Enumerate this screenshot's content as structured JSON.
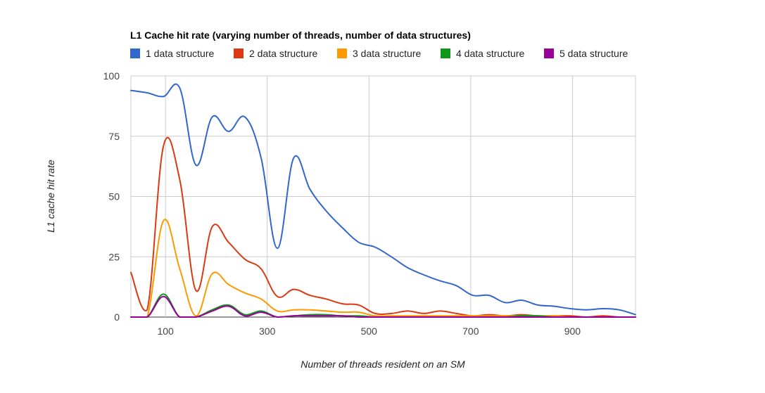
{
  "chart_data": {
    "type": "line",
    "title": "L1 Cache hit rate (varying number of threads, number of data structures)",
    "xlabel": "Number of threads resident on an SM",
    "ylabel": "L1 cache hit rate",
    "xlim": [
      32,
      1024
    ],
    "ylim": [
      0,
      100
    ],
    "x_ticks": [
      100,
      300,
      500,
      700,
      900
    ],
    "y_ticks": [
      0,
      25,
      50,
      75,
      100
    ],
    "x_tick_labels": [
      "100",
      "300",
      "500",
      "700",
      "900"
    ],
    "y_tick_labels": [
      "0",
      "25",
      "50",
      "75",
      "100"
    ],
    "grid": true,
    "legend_position": "top",
    "series": [
      {
        "name": "1 data structure",
        "color": "#3366cc",
        "points": [
          [
            32,
            94
          ],
          [
            64,
            93
          ],
          [
            96,
            91.5
          ],
          [
            128,
            95
          ],
          [
            160,
            63
          ],
          [
            192,
            83
          ],
          [
            224,
            77
          ],
          [
            256,
            83
          ],
          [
            288,
            66
          ],
          [
            320,
            28.5
          ],
          [
            352,
            66
          ],
          [
            384,
            53
          ],
          [
            416,
            44
          ],
          [
            448,
            37
          ],
          [
            480,
            31
          ],
          [
            512,
            29
          ],
          [
            544,
            25
          ],
          [
            576,
            20.5
          ],
          [
            608,
            17.5
          ],
          [
            640,
            15
          ],
          [
            672,
            13
          ],
          [
            704,
            9
          ],
          [
            736,
            9
          ],
          [
            768,
            6
          ],
          [
            800,
            7
          ],
          [
            832,
            5
          ],
          [
            864,
            4.5
          ],
          [
            896,
            3.5
          ],
          [
            928,
            3
          ],
          [
            960,
            3.5
          ],
          [
            992,
            3
          ],
          [
            1024,
            1
          ]
        ]
      },
      {
        "name": "2 data structure",
        "color": "#dc3912",
        "points": [
          [
            32,
            18.5
          ],
          [
            64,
            3
          ],
          [
            96,
            71
          ],
          [
            128,
            57
          ],
          [
            160,
            11
          ],
          [
            192,
            37.5
          ],
          [
            224,
            31
          ],
          [
            256,
            24
          ],
          [
            288,
            20
          ],
          [
            320,
            8.5
          ],
          [
            352,
            11.5
          ],
          [
            384,
            9
          ],
          [
            416,
            7.5
          ],
          [
            448,
            5.5
          ],
          [
            480,
            5
          ],
          [
            512,
            1.5
          ],
          [
            544,
            1.5
          ],
          [
            576,
            2.5
          ],
          [
            608,
            1.5
          ],
          [
            640,
            2.5
          ],
          [
            672,
            1.5
          ],
          [
            704,
            0.5
          ],
          [
            736,
            1
          ],
          [
            768,
            0.5
          ],
          [
            800,
            1
          ],
          [
            832,
            0.5
          ],
          [
            864,
            0.5
          ],
          [
            896,
            0.5
          ],
          [
            928,
            0
          ],
          [
            960,
            0.5
          ],
          [
            992,
            0
          ],
          [
            1024,
            0
          ]
        ]
      },
      {
        "name": "3 data structure",
        "color": "#ff9900",
        "points": [
          [
            32,
            0
          ],
          [
            64,
            0
          ],
          [
            96,
            40
          ],
          [
            128,
            20
          ],
          [
            160,
            0.5
          ],
          [
            192,
            18
          ],
          [
            224,
            13.5
          ],
          [
            256,
            10
          ],
          [
            288,
            7.5
          ],
          [
            320,
            2.5
          ],
          [
            352,
            3
          ],
          [
            384,
            3
          ],
          [
            416,
            2.5
          ],
          [
            448,
            2
          ],
          [
            480,
            2
          ],
          [
            512,
            0.5
          ],
          [
            544,
            0.5
          ],
          [
            576,
            0.5
          ],
          [
            608,
            0.5
          ],
          [
            640,
            0.5
          ],
          [
            672,
            0.5
          ],
          [
            704,
            0.5
          ],
          [
            736,
            0.5
          ],
          [
            768,
            0.5
          ],
          [
            800,
            0.5
          ],
          [
            832,
            0.5
          ],
          [
            864,
            0.5
          ],
          [
            896,
            0
          ],
          [
            928,
            0
          ],
          [
            960,
            0
          ],
          [
            992,
            0
          ],
          [
            1024,
            0
          ]
        ]
      },
      {
        "name": "4 data structure",
        "color": "#109618",
        "points": [
          [
            32,
            0
          ],
          [
            64,
            0
          ],
          [
            96,
            9.5
          ],
          [
            128,
            0
          ],
          [
            160,
            0
          ],
          [
            192,
            3
          ],
          [
            224,
            5
          ],
          [
            256,
            1
          ],
          [
            288,
            2.5
          ],
          [
            320,
            0
          ],
          [
            352,
            0.5
          ],
          [
            384,
            1
          ],
          [
            416,
            1
          ],
          [
            448,
            0.5
          ],
          [
            480,
            0.5
          ],
          [
            512,
            0
          ],
          [
            544,
            0
          ],
          [
            576,
            0
          ],
          [
            608,
            0
          ],
          [
            640,
            0
          ],
          [
            672,
            0
          ],
          [
            704,
            0
          ],
          [
            736,
            0
          ],
          [
            768,
            0
          ],
          [
            800,
            0.5
          ],
          [
            832,
            0.5
          ],
          [
            864,
            0
          ],
          [
            896,
            0
          ],
          [
            928,
            0
          ],
          [
            960,
            0
          ],
          [
            992,
            0
          ],
          [
            1024,
            0
          ]
        ]
      },
      {
        "name": "5 data structure",
        "color": "#990099",
        "points": [
          [
            32,
            0
          ],
          [
            64,
            0
          ],
          [
            96,
            8.5
          ],
          [
            128,
            0
          ],
          [
            160,
            0
          ],
          [
            192,
            2.5
          ],
          [
            224,
            4.5
          ],
          [
            256,
            0.5
          ],
          [
            288,
            2
          ],
          [
            320,
            0
          ],
          [
            352,
            0.5
          ],
          [
            384,
            0.5
          ],
          [
            416,
            0.5
          ],
          [
            448,
            0.5
          ],
          [
            480,
            0
          ],
          [
            512,
            0
          ],
          [
            544,
            0
          ],
          [
            576,
            0
          ],
          [
            608,
            0
          ],
          [
            640,
            0
          ],
          [
            672,
            0
          ],
          [
            704,
            0
          ],
          [
            736,
            0
          ],
          [
            768,
            0
          ],
          [
            800,
            0
          ],
          [
            832,
            0
          ],
          [
            864,
            0
          ],
          [
            896,
            0
          ],
          [
            928,
            0
          ],
          [
            960,
            0
          ],
          [
            992,
            0
          ],
          [
            1024,
            0
          ]
        ]
      }
    ]
  }
}
